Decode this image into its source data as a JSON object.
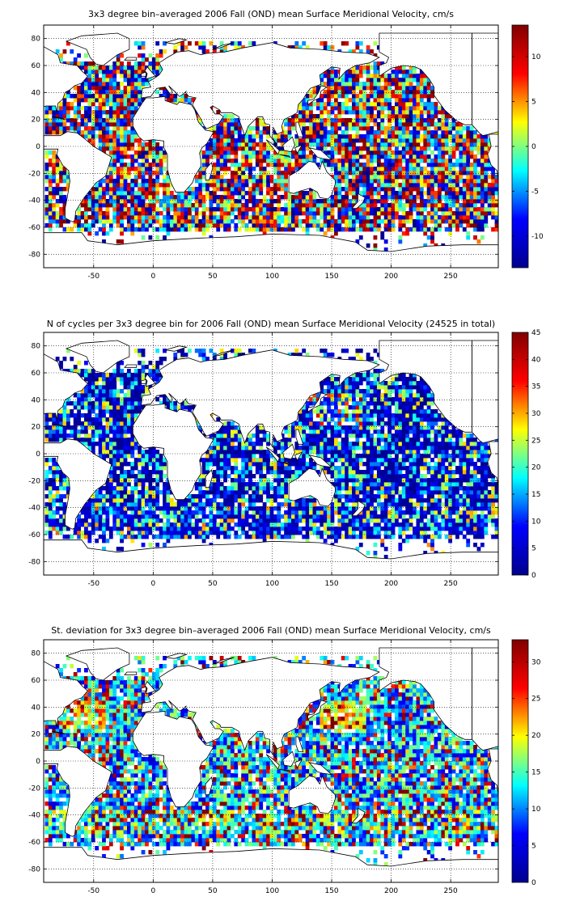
{
  "figure": {
    "colorbar_colors": [
      "#00008f",
      "#0000ff",
      "#00ffff",
      "#ffff00",
      "#ff0000",
      "#800000"
    ],
    "land_color": "#ffffff",
    "grid": "dotted"
  },
  "chart_data": [
    {
      "type": "heatmap",
      "title": "3x3 degree bin–averaged 2006 Fall (OND) mean Surface Meridional Velocity, cm/s",
      "x_ticks": [
        "-50",
        "0",
        "50",
        "100",
        "150",
        "200",
        "250"
      ],
      "x_tick_values": [
        -50,
        0,
        50,
        100,
        150,
        200,
        250
      ],
      "y_ticks": [
        "80",
        "60",
        "40",
        "20",
        "0",
        "-20",
        "-40",
        "-60",
        "-80"
      ],
      "y_tick_values": [
        80,
        60,
        40,
        20,
        0,
        -20,
        -40,
        -60,
        -80
      ],
      "xlim": [
        -92,
        290
      ],
      "ylim": [
        -90,
        90
      ],
      "colorbar": {
        "range": [
          -13.5,
          13.5
        ],
        "ticks": [
          "10",
          "5",
          "0",
          "-5",
          "-10"
        ],
        "tick_values": [
          10,
          5,
          0,
          -5,
          -10
        ]
      },
      "field": "signed",
      "grid": true
    },
    {
      "type": "heatmap",
      "title": "N of cycles per 3x3 degree bin for 2006 Fall (OND) mean Surface Meridional Velocity (24525 in total)",
      "x_ticks": [
        "-50",
        "0",
        "50",
        "100",
        "150",
        "200",
        "250"
      ],
      "x_tick_values": [
        -50,
        0,
        50,
        100,
        150,
        200,
        250
      ],
      "y_ticks": [
        "80",
        "60",
        "40",
        "20",
        "0",
        "-20",
        "-40",
        "-60",
        "-80"
      ],
      "y_tick_values": [
        80,
        60,
        40,
        20,
        0,
        -20,
        -40,
        -60,
        -80
      ],
      "xlim": [
        -92,
        290
      ],
      "ylim": [
        -90,
        90
      ],
      "colorbar": {
        "range": [
          0,
          45
        ],
        "ticks": [
          "45",
          "40",
          "35",
          "30",
          "25",
          "20",
          "15",
          "10",
          "5",
          "0"
        ],
        "tick_values": [
          45,
          40,
          35,
          30,
          25,
          20,
          15,
          10,
          5,
          0
        ]
      },
      "field": "count",
      "grid": true
    },
    {
      "type": "heatmap",
      "title": "St. deviation for 3x3 degree bin–averaged 2006 Fall (OND) mean Surface Meridional Velocity, cm/s",
      "x_ticks": [
        "-50",
        "0",
        "50",
        "100",
        "150",
        "200",
        "250"
      ],
      "x_tick_values": [
        -50,
        0,
        50,
        100,
        150,
        200,
        250
      ],
      "y_ticks": [
        "80",
        "60",
        "40",
        "20",
        "0",
        "-20",
        "-40",
        "-60",
        "-80"
      ],
      "y_tick_values": [
        80,
        60,
        40,
        20,
        0,
        -20,
        -40,
        -60,
        -80
      ],
      "xlim": [
        -92,
        290
      ],
      "ylim": [
        -90,
        90
      ],
      "colorbar": {
        "range": [
          0,
          33
        ],
        "ticks": [
          "30",
          "25",
          "20",
          "15",
          "10",
          "5",
          "0"
        ],
        "tick_values": [
          30,
          25,
          20,
          15,
          10,
          5,
          0
        ]
      },
      "field": "stdev",
      "grid": true
    }
  ]
}
